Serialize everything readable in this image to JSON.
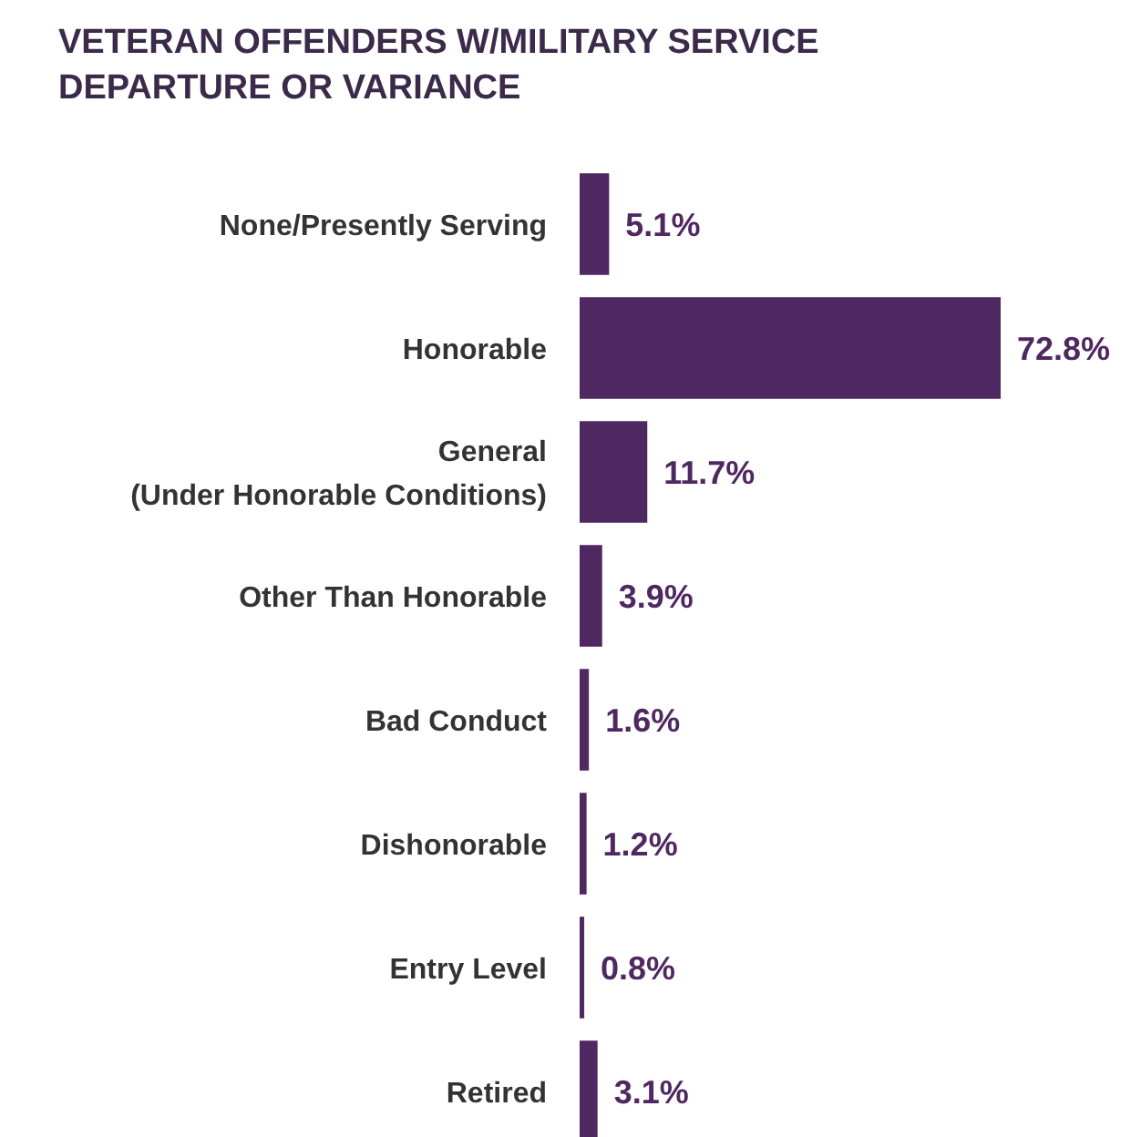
{
  "chart_data": {
    "type": "bar",
    "orientation": "horizontal",
    "title": "VETERAN OFFENDERS W/MILITARY SERVICE\nDEPARTURE OR VARIANCE",
    "categories": [
      "None/Presently Serving",
      "Honorable",
      "General\n(Under Honorable Conditions)",
      "Other Than Honorable",
      "Bad Conduct",
      "Dishonorable",
      "Entry Level",
      "Retired"
    ],
    "values": [
      5.1,
      72.8,
      11.7,
      3.9,
      1.6,
      1.2,
      0.8,
      3.1
    ],
    "value_labels": [
      "5.1%",
      "72.8%",
      "11.7%",
      "3.9%",
      "1.6%",
      "1.2%",
      "0.8%",
      "3.1%"
    ],
    "color": "#4f2862"
  }
}
